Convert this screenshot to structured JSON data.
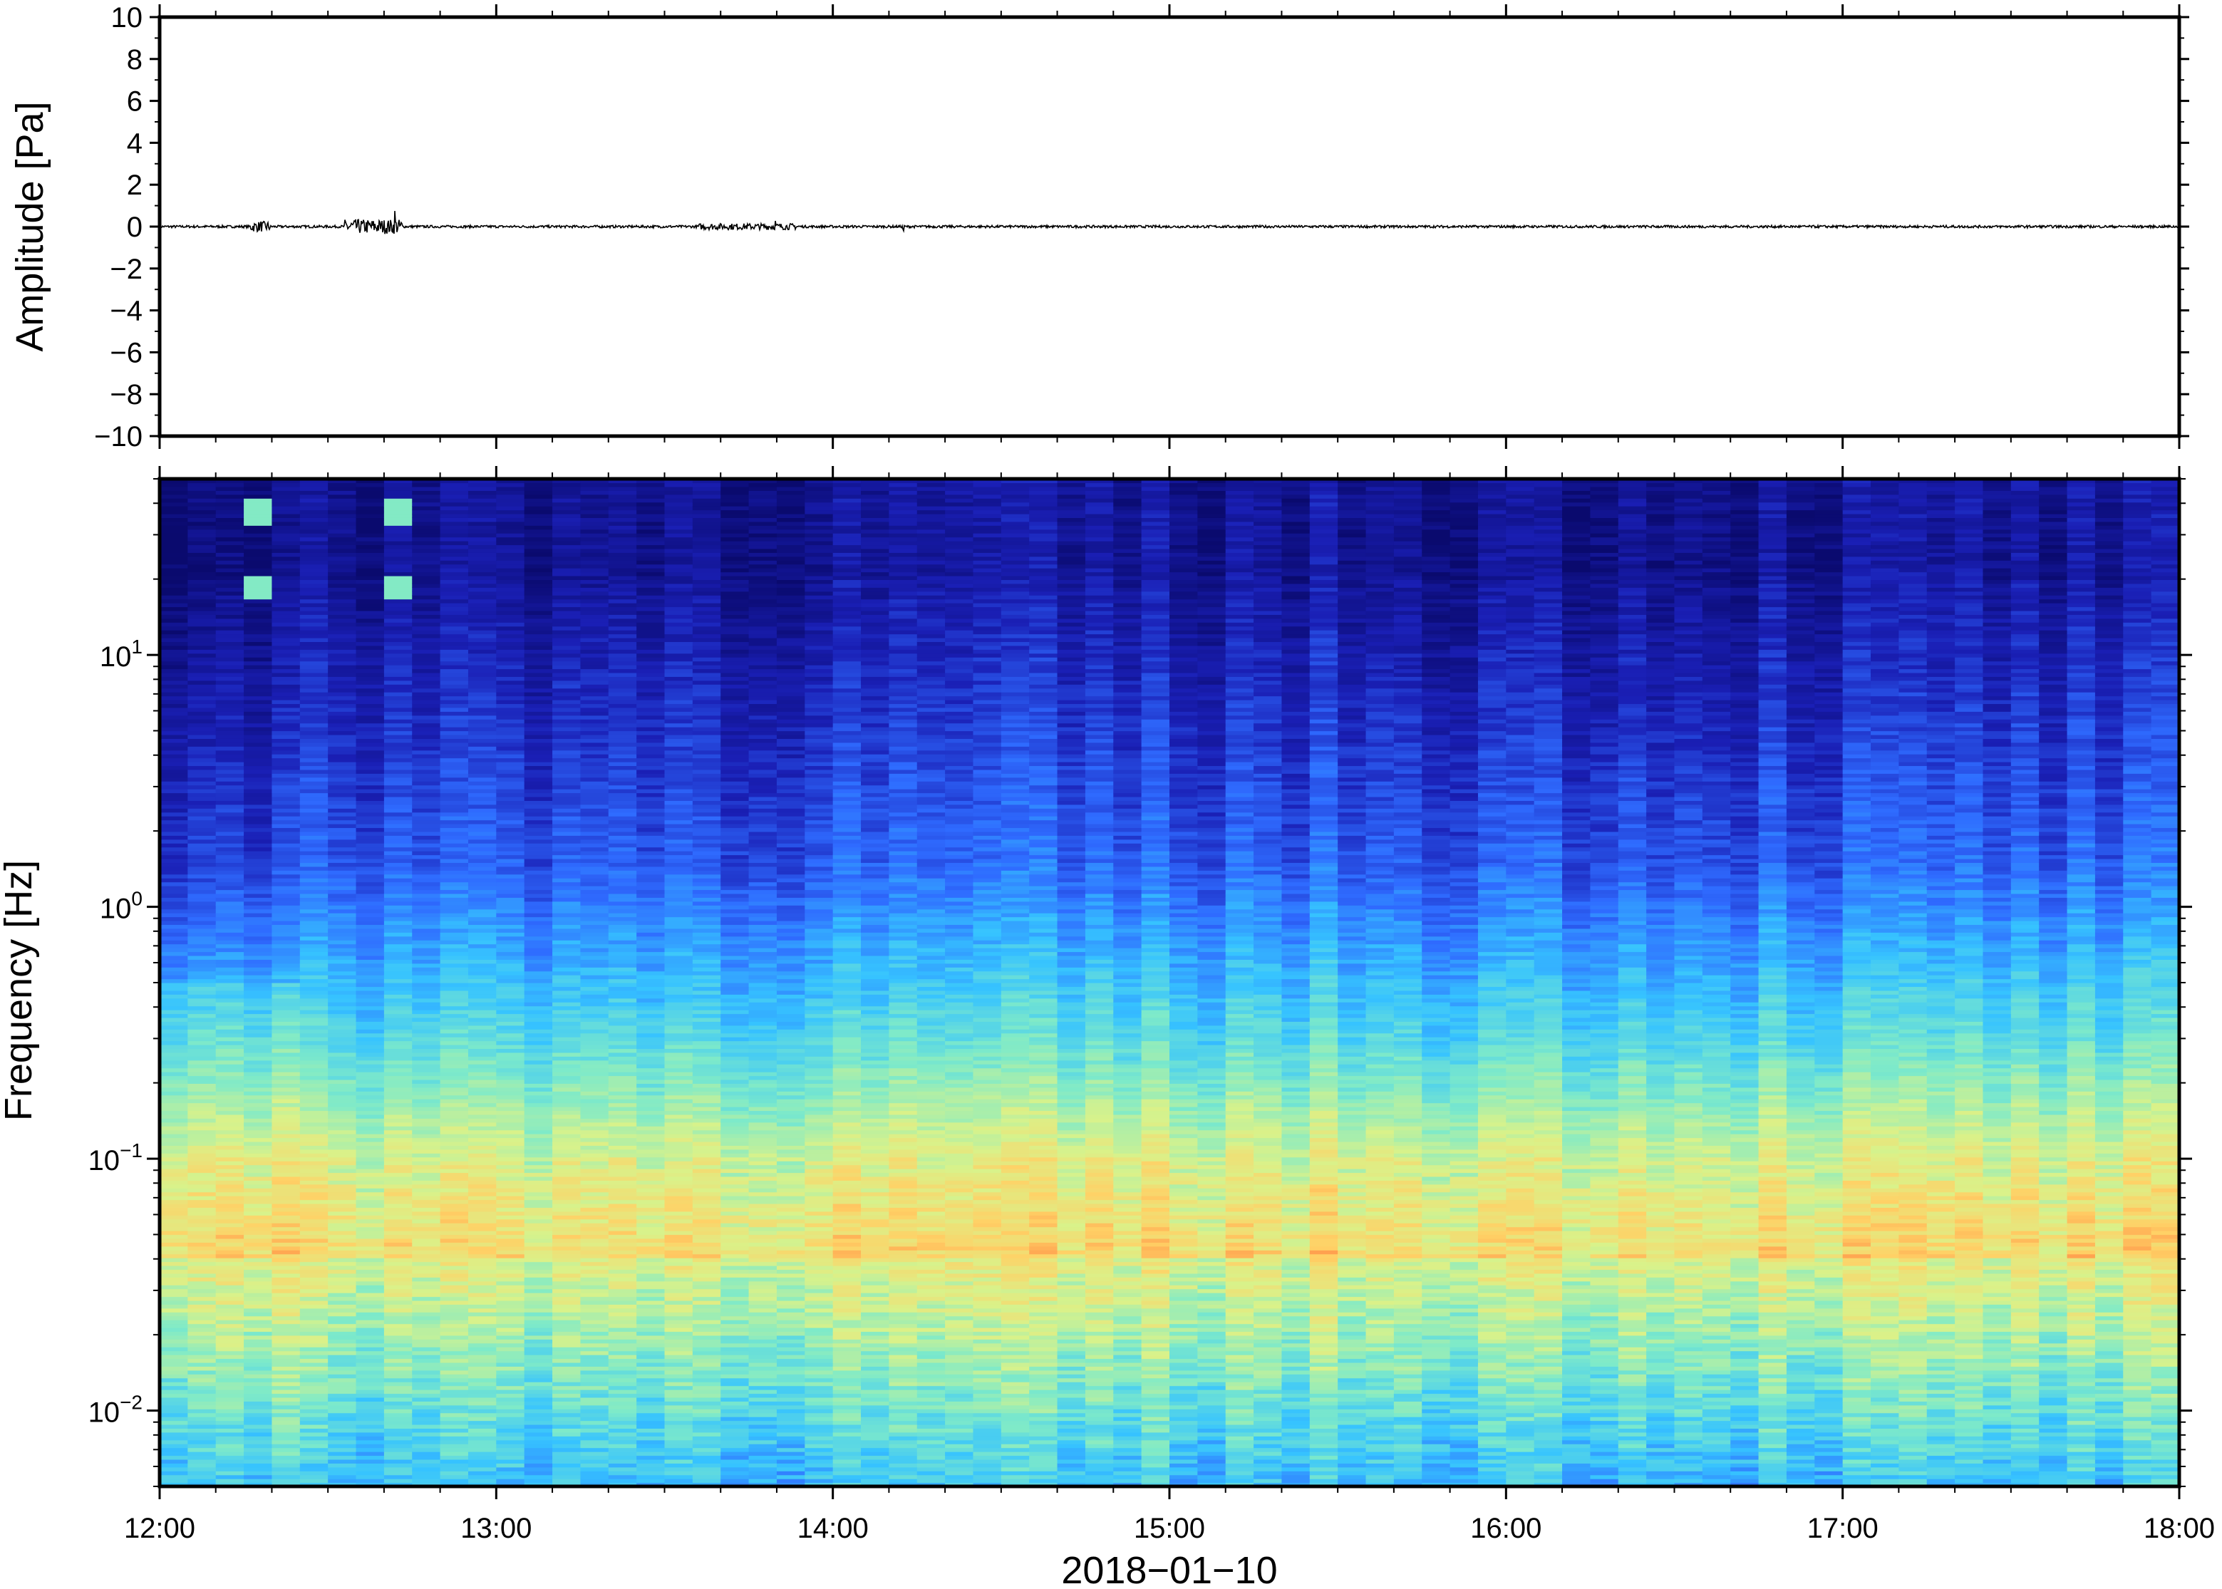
{
  "chart_data": [
    {
      "type": "line",
      "title": "",
      "xlabel": "",
      "ylabel": "Amplitude [Pa]",
      "ylim": [
        -10,
        10
      ],
      "yticks": [
        10,
        8,
        6,
        4,
        2,
        0,
        -2,
        -4,
        -6,
        -8,
        -10
      ],
      "ytick_labels": [
        "10",
        "8",
        "6",
        "4",
        "2",
        "0",
        "−2",
        "−4",
        "−6",
        "−8",
        "−10"
      ],
      "xlim_hours": [
        12,
        18
      ],
      "grid": false,
      "line_color": "#000000",
      "events": [
        {
          "time_h": 12.3,
          "amp": 0.3
        },
        {
          "time_h": 12.7,
          "amp": 1.2
        },
        {
          "time_h": 13.83,
          "amp": 0.5
        },
        {
          "time_h": 14.21,
          "amp": 0.8
        }
      ]
    },
    {
      "type": "heatmap",
      "title": "",
      "xlabel": "2018−01−10",
      "ylabel": "Frequency [Hz]",
      "y_scale": "log",
      "ylim_hz": [
        0.005,
        50
      ],
      "yticks": [
        {
          "base": "10",
          "exp": "1",
          "value": 10
        },
        {
          "base": "10",
          "exp": "0",
          "value": 1
        },
        {
          "base": "10",
          "exp": "−1",
          "value": 0.1
        },
        {
          "base": "10",
          "exp": "−2",
          "value": 0.01
        }
      ],
      "xticks": [
        "12:00",
        "13:00",
        "14:00",
        "15:00",
        "16:00",
        "17:00",
        "18:00"
      ],
      "xtick_hours": [
        12,
        13,
        14,
        15,
        16,
        17,
        18
      ],
      "colormap": "jet-like (dark blue = low power, orange/red = high power)",
      "colormap_stops": [
        "#0a0a6e",
        "#1a1fb5",
        "#2f6bff",
        "#36c3ff",
        "#7eeac9",
        "#d9f28a",
        "#ffd166",
        "#ff7a3c"
      ],
      "hotspot_columns_hours": [
        12.3,
        12.7
      ],
      "grid": false
    }
  ]
}
